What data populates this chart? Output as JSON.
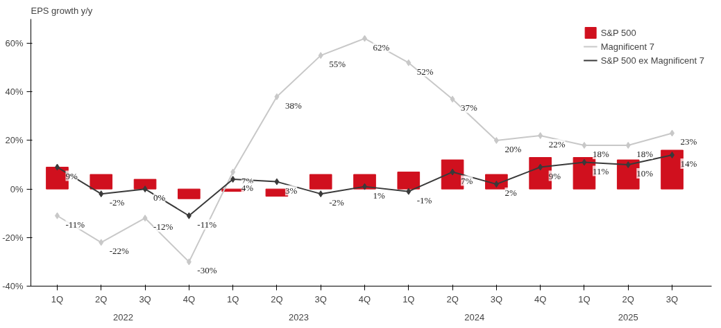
{
  "chart_data": {
    "type": "bar",
    "title": "EPS growth y/y",
    "categories": [
      "1Q",
      "2Q",
      "3Q",
      "4Q",
      "1Q",
      "2Q",
      "3Q",
      "4Q",
      "1Q",
      "2Q",
      "3Q",
      "4Q",
      "1Q",
      "2Q",
      "3Q"
    ],
    "annotations": [
      "2022",
      "2023",
      "2024",
      "2025"
    ],
    "series": [
      {
        "name": "S&P 500",
        "color": "#d0101e",
        "values": [
          9,
          6,
          4,
          -4,
          -1,
          -3,
          6,
          6,
          7,
          12,
          6,
          13,
          13,
          12,
          16
        ]
      },
      {
        "name": "Magnificent 7",
        "type": "line",
        "color": "#c8c8c8",
        "marker": "diamond",
        "values": [
          -11,
          -22,
          -12,
          -30,
          7,
          38,
          55,
          62,
          52,
          37,
          20,
          22,
          18,
          18,
          23
        ],
        "value_labels": [
          "-11%",
          "-22%",
          "-12%",
          "-30%",
          "7%",
          "38%",
          "55%",
          "62%",
          "52%",
          "37%",
          "20%",
          "22%",
          "18%",
          "18%",
          "23%"
        ]
      },
      {
        "name": "S&P 500 ex Magnificent 7",
        "type": "line",
        "color": "#3a3a3a",
        "marker": "diamond",
        "values": [
          9,
          -2,
          0,
          -11,
          4,
          3,
          -2,
          1,
          -1,
          7,
          2,
          9,
          11,
          10,
          14
        ],
        "value_labels": [
          "9%",
          "-2%",
          "0%",
          "-11%",
          "4%",
          "3%",
          "-2%",
          "1%",
          "-1%",
          "7%",
          "2%",
          "9%",
          "11%",
          "10%",
          "14%"
        ]
      }
    ],
    "ylim": [
      -40,
      70
    ],
    "yticks": [
      {
        "value": -40,
        "label": "-40%"
      },
      {
        "value": -20,
        "label": "-20%"
      },
      {
        "value": 0,
        "label": "0%"
      },
      {
        "value": 20,
        "label": "20%"
      },
      {
        "value": 40,
        "label": "40%"
      },
      {
        "value": 60,
        "label": "60%"
      }
    ],
    "grid": false,
    "legend": "top right"
  }
}
